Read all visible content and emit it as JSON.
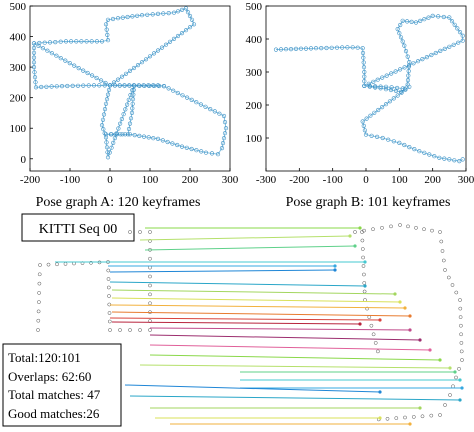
{
  "chart_data": [
    {
      "type": "scatter",
      "title": "Pose graph A: 120 keyframes",
      "xlim": [
        -200,
        300
      ],
      "ylim": [
        -40,
        500
      ],
      "xticks": [
        -200,
        -100,
        0,
        100,
        200,
        300
      ],
      "yticks": [
        0,
        100,
        200,
        300,
        400,
        500
      ],
      "path": [
        [
          -190,
          378
        ],
        [
          -110,
          384
        ],
        [
          -20,
          384
        ],
        [
          -5,
          388
        ],
        [
          -10,
          440
        ],
        [
          -5,
          455
        ],
        [
          20,
          460
        ],
        [
          80,
          470
        ],
        [
          160,
          478
        ],
        [
          190,
          492
        ],
        [
          205,
          455
        ],
        [
          210,
          440
        ],
        [
          0,
          240
        ],
        [
          -40,
          240
        ],
        [
          -120,
          238
        ],
        [
          -185,
          234
        ],
        [
          -190,
          300
        ],
        [
          -190,
          378
        ],
        [
          0,
          240
        ],
        [
          60,
          240
        ],
        [
          120,
          240
        ],
        [
          135,
          238
        ],
        [
          0,
          240
        ],
        [
          -10,
          180
        ],
        [
          -20,
          110
        ],
        [
          -10,
          70
        ],
        [
          -5,
          5
        ],
        [
          60,
          240
        ],
        [
          55,
          150
        ],
        [
          45,
          80
        ],
        [
          -10,
          80
        ],
        [
          50,
          80
        ],
        [
          120,
          65
        ],
        [
          180,
          40
        ],
        [
          240,
          20
        ],
        [
          270,
          15
        ],
        [
          280,
          35
        ],
        [
          290,
          100
        ],
        [
          285,
          140
        ],
        [
          135,
          238
        ]
      ]
    },
    {
      "type": "scatter",
      "title": "Pose graph B: 101 keyframes",
      "xlim": [
        -300,
        300
      ],
      "ylim": [
        0,
        500
      ],
      "xticks": [
        -300,
        -200,
        -100,
        0,
        100,
        200,
        300
      ],
      "yticks": [
        100,
        200,
        300,
        400,
        500
      ],
      "path": [
        [
          -270,
          368
        ],
        [
          -150,
          372
        ],
        [
          -40,
          375
        ],
        [
          -10,
          372
        ],
        [
          -5,
          300
        ],
        [
          -5,
          258
        ],
        [
          60,
          255
        ],
        [
          110,
          250
        ],
        [
          125,
          262
        ],
        [
          130,
          330
        ],
        [
          115,
          380
        ],
        [
          95,
          430
        ],
        [
          110,
          455
        ],
        [
          150,
          450
        ],
        [
          200,
          470
        ],
        [
          250,
          465
        ],
        [
          290,
          410
        ],
        [
          290,
          395
        ],
        [
          -5,
          258
        ],
        [
          60,
          248
        ],
        [
          105,
          240
        ],
        [
          130,
          255
        ],
        [
          -10,
          150
        ],
        [
          0,
          110
        ],
        [
          50,
          100
        ],
        [
          100,
          85
        ],
        [
          160,
          60
        ],
        [
          220,
          40
        ],
        [
          280,
          30
        ],
        [
          290,
          35
        ]
      ]
    },
    {
      "type": "scatter",
      "title": "KITTI Seq 00",
      "stats": {
        "total": "Total:120:101",
        "overlaps": "Overlaps: 62:60",
        "total_matches": "Total matches: 47",
        "good_matches": "Good matches:26"
      }
    }
  ]
}
